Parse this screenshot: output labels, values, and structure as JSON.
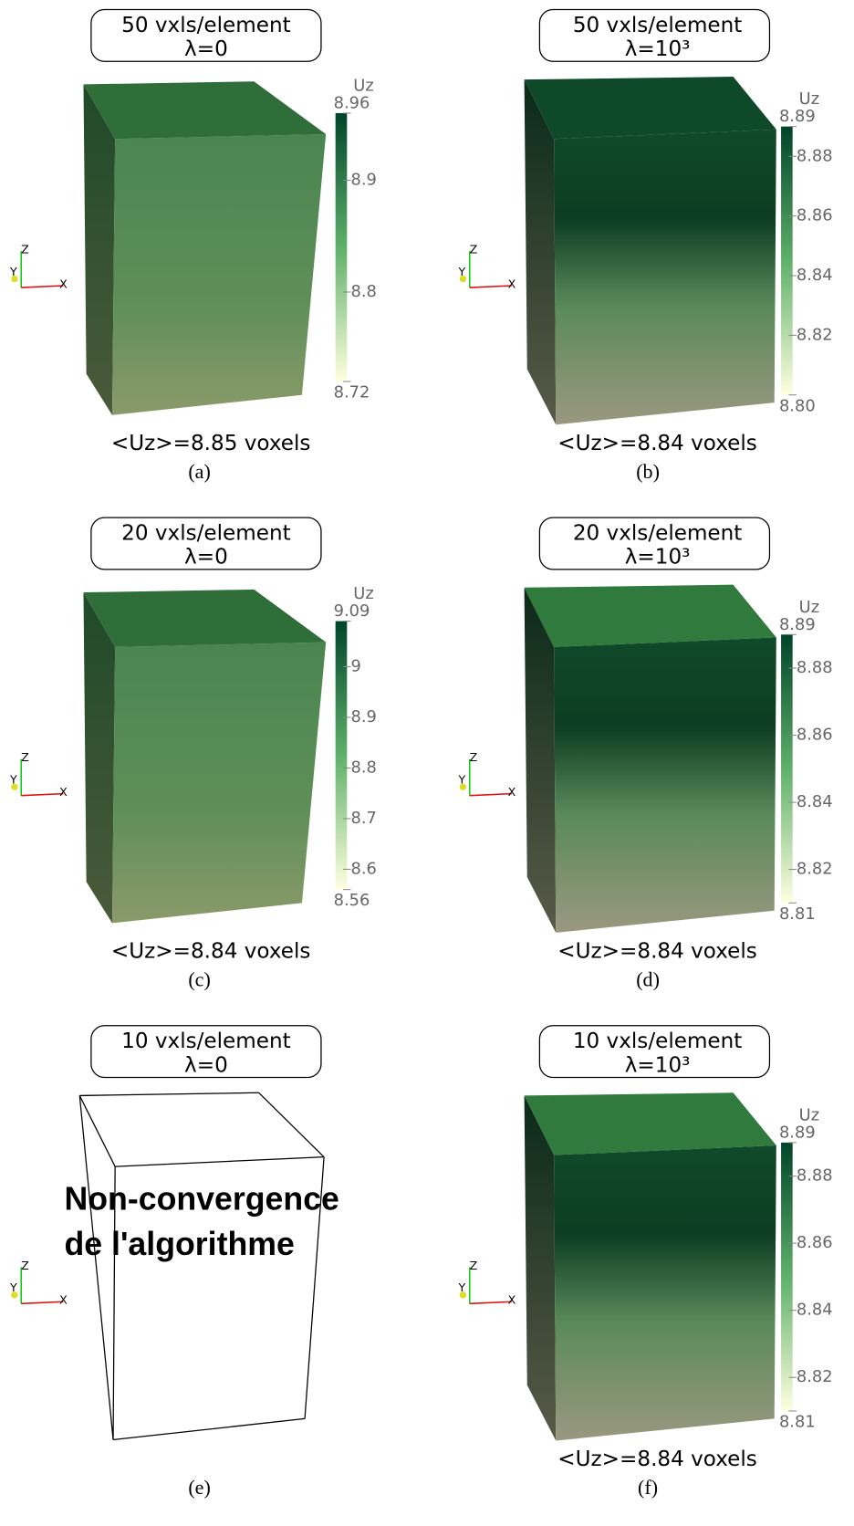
{
  "axes_triad": {
    "x": "X",
    "y": "Y",
    "z": "Z"
  },
  "panels": [
    {
      "title": [
        "50 vxls/element",
        "λ=0"
      ],
      "colorbar": {
        "label": "Uz",
        "clim": [
          8.72,
          8.96
        ],
        "ticks": [
          8.72,
          8.8,
          8.9,
          8.96
        ]
      },
      "mean": "<Uz>=8.85 voxels",
      "caption": "(a)"
    },
    {
      "title": [
        "50 vxls/element",
        "λ=10³"
      ],
      "colorbar": {
        "label": "Uz",
        "clim": [
          8.8,
          8.89
        ],
        "ticks": [
          {
            "value": 8.8,
            "label": "8.80"
          },
          8.82,
          8.84,
          8.86,
          8.88,
          8.89
        ]
      },
      "mean": "<Uz>=8.84 voxels",
      "caption": "(b)"
    },
    {
      "title": [
        "20 vxls/element",
        "λ=0"
      ],
      "colorbar": {
        "label": "Uz",
        "clim": [
          8.56,
          9.09
        ],
        "ticks": [
          8.56,
          8.6,
          8.7,
          8.8,
          8.9,
          9,
          9.09
        ]
      },
      "mean": "<Uz>=8.84 voxels",
      "caption": "(c)"
    },
    {
      "title": [
        "20 vxls/element",
        "λ=10³"
      ],
      "colorbar": {
        "label": "Uz",
        "clim": [
          8.81,
          8.89
        ],
        "ticks": [
          8.81,
          8.82,
          8.84,
          8.86,
          8.88,
          8.89
        ]
      },
      "mean": "<Uz>=8.84 voxels",
      "caption": "(d)"
    },
    {
      "title": [
        "10 vxls/element",
        "λ=0"
      ],
      "message": [
        "Non-convergence",
        "de l'algorithme"
      ],
      "caption": "(e)"
    },
    {
      "title": [
        "10 vxls/element",
        "λ=10³"
      ],
      "colorbar": {
        "label": "Uz",
        "clim": [
          8.81,
          8.89
        ],
        "ticks": [
          8.81,
          8.82,
          8.84,
          8.86,
          8.88,
          8.89
        ]
      },
      "mean": "<Uz>=8.84 voxels",
      "caption": "(f)"
    }
  ]
}
